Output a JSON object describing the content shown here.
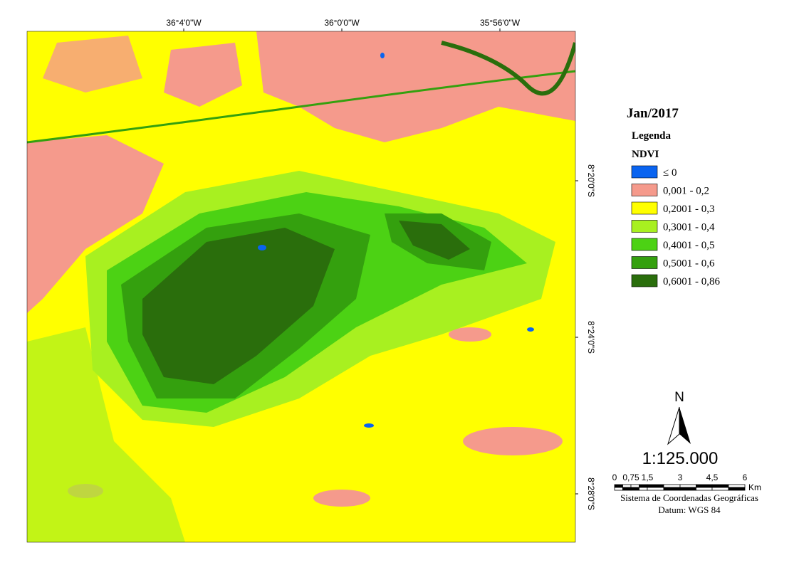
{
  "title": "Jan/2017",
  "legend": {
    "heading": "Legenda",
    "subheading": "NDVI",
    "items": [
      {
        "label": "≤ 0",
        "color": "#0a64f0"
      },
      {
        "label": "0,001 - 0,2",
        "color": "#f59a8c"
      },
      {
        "label": "0,2001 - 0,3",
        "color": "#ffff00"
      },
      {
        "label": "0,3001 - 0,4",
        "color": "#a8f020"
      },
      {
        "label": "0,4001 - 0,5",
        "color": "#4cd214"
      },
      {
        "label": "0,5001 - 0,6",
        "color": "#34a00e"
      },
      {
        "label": "0,6001 - 0,86",
        "color": "#2a6e0c"
      }
    ]
  },
  "top_labels": [
    "36°4'0\"W",
    "36°0'0\"W",
    "35°56'0\"W"
  ],
  "side_labels": [
    "8°20'0\"S",
    "8°24'0\"S",
    "8°28'0\"S"
  ],
  "north": "N",
  "scale": "1:125.000",
  "scale_bar": {
    "labels": [
      "0",
      "0,75",
      "1,5",
      "3",
      "4,5",
      "6"
    ],
    "unit": "Km"
  },
  "coordinate_system": "Sistema de Coordenadas Geográficas",
  "datum": "Datum: WGS 84"
}
